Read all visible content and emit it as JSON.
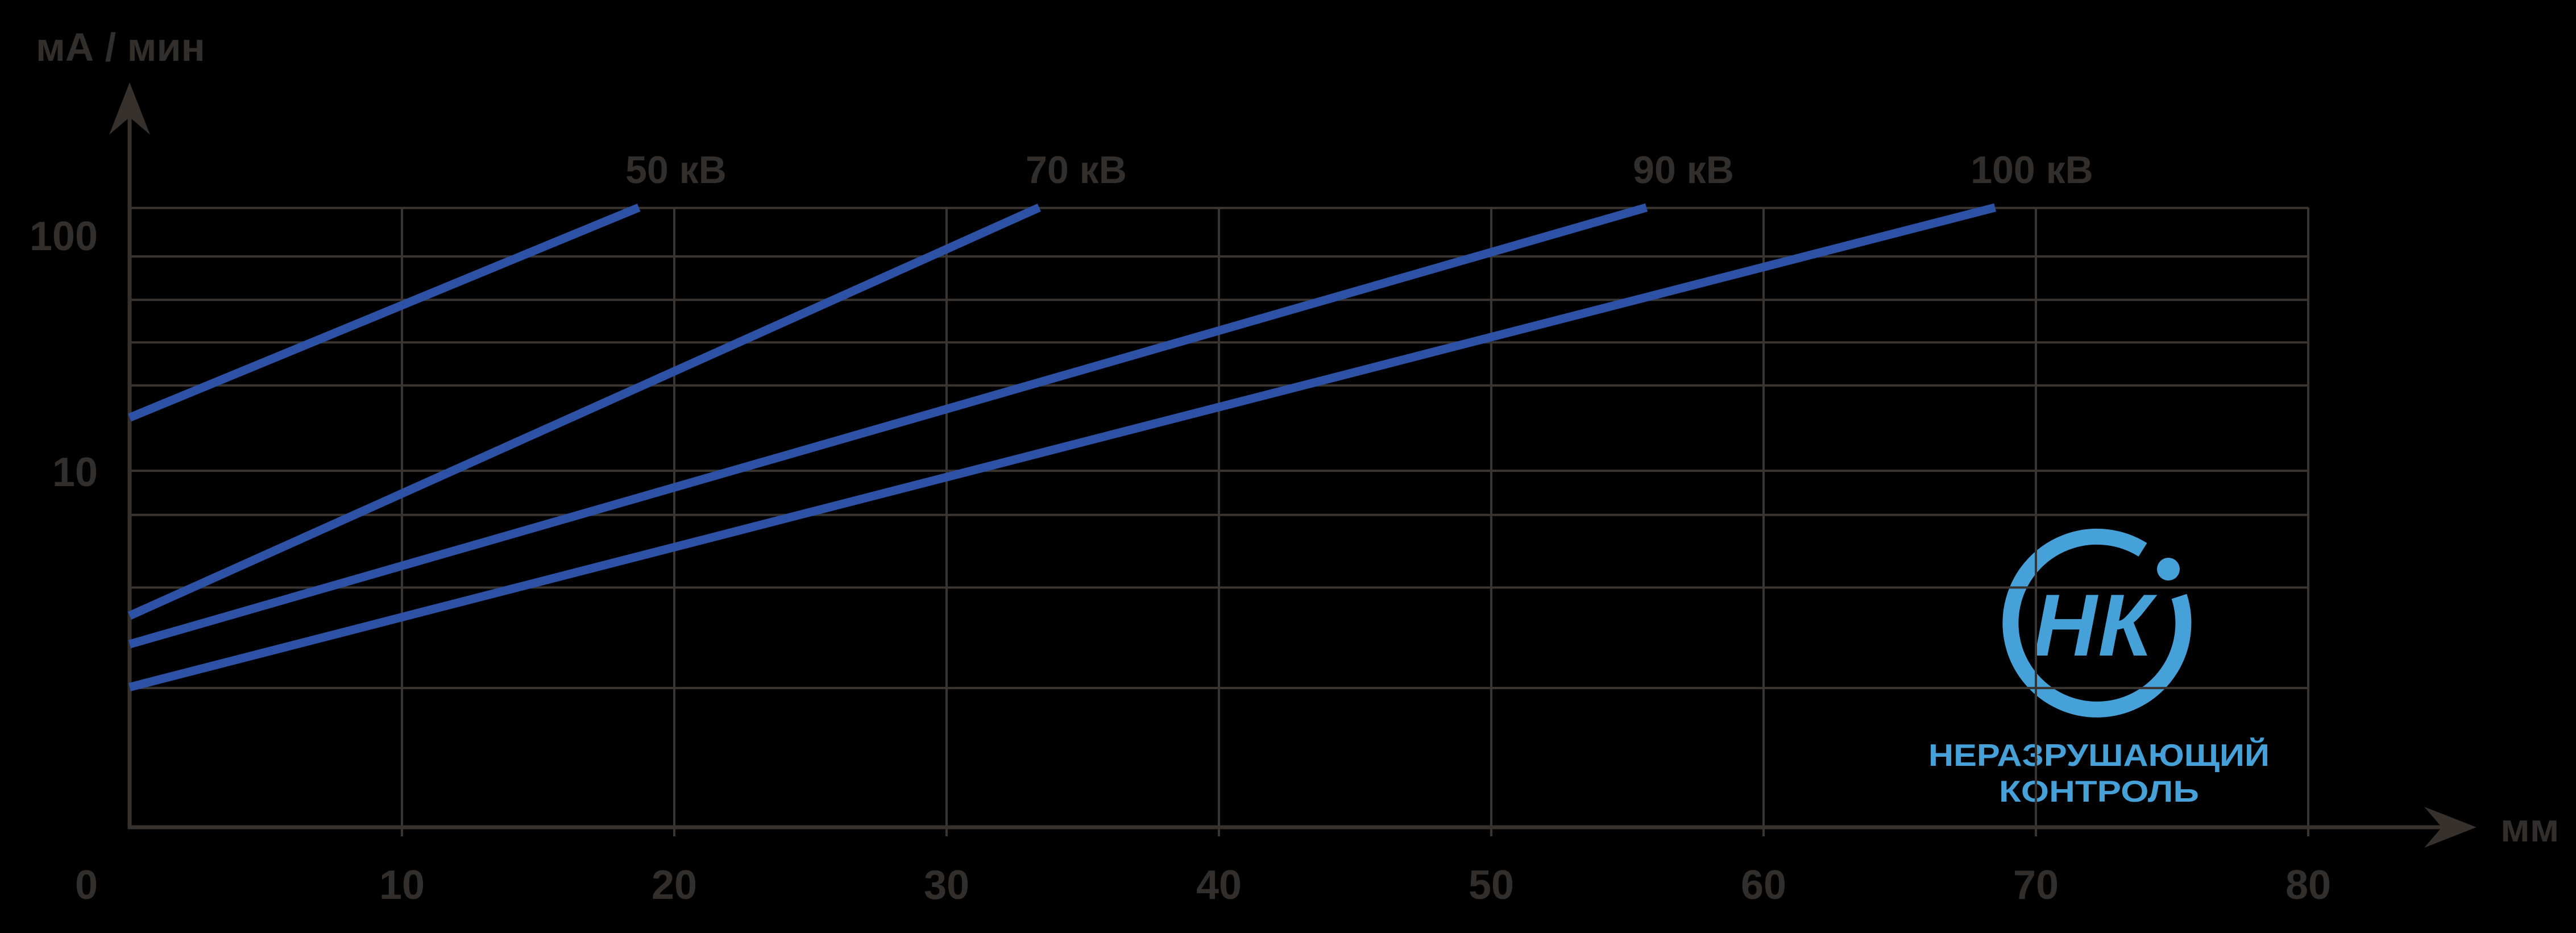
{
  "page": {
    "background": "#000000"
  },
  "colors": {
    "background": "#000000",
    "curve": "#2d52a5",
    "grid": "#3a3531",
    "axis": "#36312d",
    "text": "#322e2b",
    "logo": "#47a1d9"
  },
  "chart_data": {
    "type": "line",
    "title": "",
    "ylabel": "мА / мин",
    "xlabel": "мм",
    "y_axis": {
      "scale": "log",
      "range": [
        1,
        140
      ],
      "ticks": [
        {
          "value": 100,
          "label": "100"
        },
        {
          "value": 10,
          "label": "10"
        }
      ],
      "gridline_values": [
        130,
        81,
        53,
        35,
        23,
        10,
        6.5,
        3.2,
        1.2
      ]
    },
    "x_axis": {
      "range": [
        0,
        85
      ],
      "ticks": [
        {
          "value": 0,
          "label": "0"
        },
        {
          "value": 10,
          "label": "10"
        },
        {
          "value": 20,
          "label": "20"
        },
        {
          "value": 30,
          "label": "30"
        },
        {
          "value": 40,
          "label": "40"
        },
        {
          "value": 50,
          "label": "50"
        },
        {
          "value": 60,
          "label": "60"
        },
        {
          "value": 70,
          "label": "70"
        },
        {
          "value": 80,
          "label": "80"
        }
      ]
    },
    "grid": "on",
    "legend_position": "labels-above-line-ends",
    "series": [
      {
        "name": "50 кВ",
        "points": [
          [
            0,
            16.8
          ],
          [
            18.7,
            130.5
          ]
        ]
      },
      {
        "name": "70 кВ",
        "points": [
          [
            0,
            2.43
          ],
          [
            33.4,
            130.5
          ]
        ]
      },
      {
        "name": "90 кВ",
        "points": [
          [
            0,
            1.84
          ],
          [
            55.7,
            130.5
          ]
        ]
      },
      {
        "name": "100 кВ",
        "points": [
          [
            0,
            1.21
          ],
          [
            68.5,
            130.5
          ]
        ]
      }
    ]
  },
  "logo": {
    "monogram": "НК",
    "line1": "НЕРАЗРУШАЮЩИЙ",
    "line2": "КОНТРОЛЬ"
  }
}
